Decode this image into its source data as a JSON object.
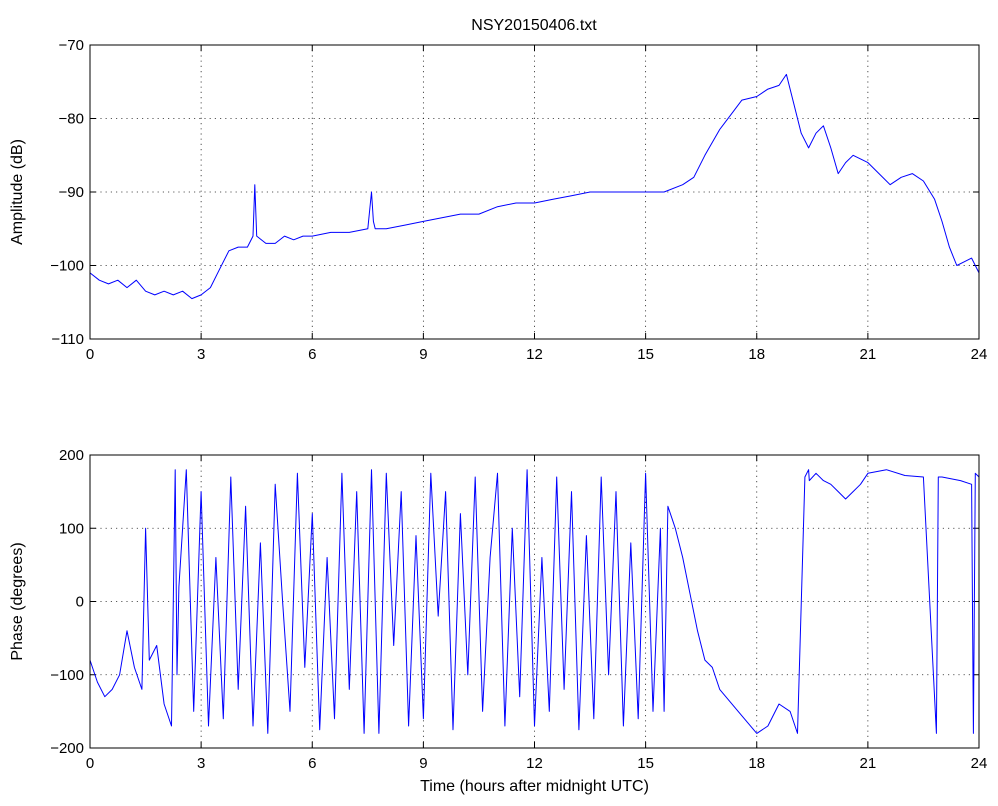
{
  "title": "NSY20150406.txt",
  "colors": {
    "trace": "#0000ff",
    "background": "#ffffff",
    "axes": "#000000"
  },
  "chart_data": [
    {
      "type": "line",
      "title": "NSY20150406.txt",
      "xlabel": "",
      "ylabel": "Amplitude (dB)",
      "xlim": [
        0,
        24
      ],
      "ylim": [
        -110,
        -70
      ],
      "xticks": [
        "0",
        "3",
        "6",
        "9",
        "12",
        "15",
        "18",
        "21",
        "24"
      ],
      "yticks": [
        "−110",
        "−100",
        "−90",
        "−80",
        "−70"
      ],
      "grid": true,
      "series": [
        {
          "x": [
            0,
            0.25,
            0.5,
            0.75,
            1.0,
            1.25,
            1.5,
            1.75,
            2.0,
            2.25,
            2.5,
            2.75,
            3.0,
            3.25,
            3.5,
            3.75,
            4.0,
            4.25,
            4.4,
            4.45,
            4.5,
            4.75,
            5.0,
            5.25,
            5.5,
            5.75,
            6.0,
            6.5,
            7.0,
            7.5,
            7.6,
            7.65,
            7.7,
            8.0,
            8.5,
            9.0,
            9.5,
            10.0,
            10.5,
            11.0,
            11.5,
            12.0,
            12.5,
            13.0,
            13.5,
            14.0,
            14.5,
            15.0,
            15.5,
            16.0,
            16.3,
            16.6,
            17.0,
            17.3,
            17.6,
            18.0,
            18.3,
            18.6,
            18.8,
            19.0,
            19.2,
            19.4,
            19.6,
            19.8,
            20.0,
            20.2,
            20.4,
            20.6,
            20.8,
            21.0,
            21.3,
            21.6,
            21.9,
            22.2,
            22.5,
            22.8,
            23.0,
            23.2,
            23.4,
            23.6,
            23.8,
            24.0
          ],
          "y": [
            -101,
            -102,
            -102.5,
            -102,
            -103,
            -102,
            -103.5,
            -104,
            -103.5,
            -104,
            -103.5,
            -104.5,
            -104,
            -103,
            -100.5,
            -98,
            -97.5,
            -97.5,
            -96,
            -89,
            -96,
            -97,
            -97,
            -96,
            -96.5,
            -96,
            -96,
            -95.5,
            -95.5,
            -95,
            -90,
            -94,
            -95,
            -95,
            -94.5,
            -94,
            -93.5,
            -93,
            -93,
            -92,
            -91.5,
            -91.5,
            -91,
            -90.5,
            -90,
            -90,
            -90,
            -90,
            -90,
            -89,
            -88,
            -85,
            -81.5,
            -79.5,
            -77.5,
            -77,
            -76,
            -75.5,
            -74,
            -78,
            -82,
            -84,
            -82,
            -81,
            -84,
            -87.5,
            -86,
            -85,
            -85.5,
            -86,
            -87.5,
            -89,
            -88,
            -87.5,
            -88.5,
            -91,
            -94,
            -97.5,
            -100,
            -99.5,
            -99,
            -101
          ]
        }
      ]
    },
    {
      "type": "line",
      "title": "",
      "xlabel": "Time (hours after midnight UTC)",
      "ylabel": "Phase (degrees)",
      "xlim": [
        0,
        24
      ],
      "ylim": [
        -200,
        200
      ],
      "xticks": [
        "0",
        "3",
        "6",
        "9",
        "12",
        "15",
        "18",
        "21",
        "24"
      ],
      "yticks": [
        "−200",
        "−100",
        "0",
        "100",
        "200"
      ],
      "grid": true,
      "series": [
        {
          "x": [
            0,
            0.2,
            0.4,
            0.6,
            0.8,
            1.0,
            1.2,
            1.4,
            1.5,
            1.6,
            1.8,
            2.0,
            2.2,
            2.3,
            2.35,
            2.4,
            2.6,
            2.8,
            3.0,
            3.2,
            3.4,
            3.6,
            3.8,
            4.0,
            4.2,
            4.4,
            4.6,
            4.8,
            5.0,
            5.2,
            5.4,
            5.6,
            5.8,
            6.0,
            6.2,
            6.4,
            6.6,
            6.8,
            7.0,
            7.2,
            7.4,
            7.6,
            7.8,
            8.0,
            8.2,
            8.4,
            8.6,
            8.8,
            9.0,
            9.2,
            9.4,
            9.6,
            9.8,
            10.0,
            10.2,
            10.4,
            10.6,
            10.8,
            11.0,
            11.2,
            11.4,
            11.6,
            11.8,
            12.0,
            12.2,
            12.4,
            12.6,
            12.8,
            13.0,
            13.2,
            13.4,
            13.6,
            13.8,
            14.0,
            14.2,
            14.4,
            14.6,
            14.8,
            15.0,
            15.2,
            15.4,
            15.5,
            15.6,
            15.8,
            16.0,
            16.2,
            16.4,
            16.6,
            16.8,
            17.0,
            17.5,
            18.0,
            18.3,
            18.6,
            18.9,
            19.1,
            19.3,
            19.4,
            19.42,
            19.6,
            19.8,
            20.0,
            20.2,
            20.4,
            20.6,
            20.8,
            21.0,
            21.5,
            22.0,
            22.5,
            22.85,
            22.9,
            22.95,
            23.0,
            23.5,
            23.8,
            23.85,
            23.9,
            24.0
          ],
          "y": [
            -80,
            -110,
            -130,
            -120,
            -100,
            -40,
            -90,
            -120,
            100,
            -80,
            -60,
            -140,
            -170,
            180,
            -100,
            20,
            180,
            -150,
            150,
            -170,
            60,
            -160,
            170,
            -120,
            130,
            -170,
            80,
            -180,
            160,
            0,
            -150,
            175,
            -90,
            120,
            -175,
            60,
            -160,
            175,
            -120,
            150,
            -180,
            180,
            -180,
            175,
            -60,
            150,
            -170,
            90,
            -160,
            175,
            -20,
            150,
            -175,
            120,
            -100,
            170,
            -150,
            60,
            175,
            -170,
            100,
            -130,
            180,
            -170,
            60,
            -150,
            170,
            -120,
            150,
            -175,
            90,
            -160,
            170,
            -100,
            150,
            -170,
            80,
            -160,
            175,
            -150,
            100,
            -150,
            130,
            100,
            60,
            10,
            -40,
            -80,
            -90,
            -120,
            -150,
            -180,
            -170,
            -140,
            -150,
            -180,
            170,
            180,
            165,
            175,
            165,
            160,
            150,
            140,
            150,
            160,
            175,
            180,
            172,
            170,
            -180,
            170,
            170,
            170,
            165,
            160,
            -180,
            175,
            170
          ]
        }
      ]
    }
  ]
}
